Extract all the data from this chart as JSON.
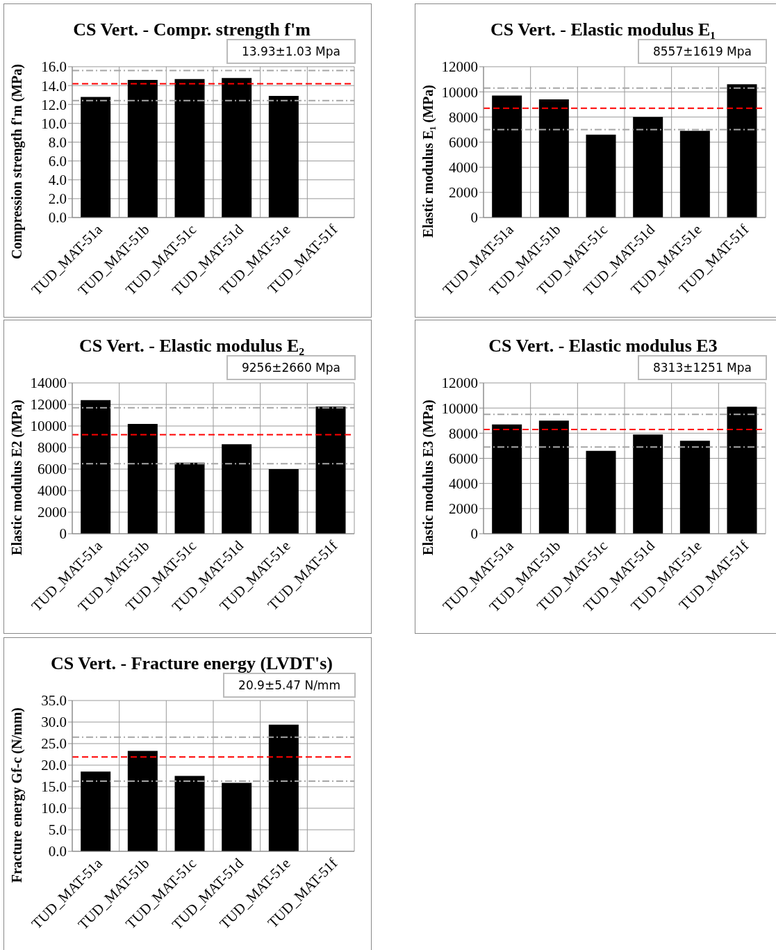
{
  "chart_data": [
    {
      "type": "bar",
      "title": "CS Vert. - Compr. strength f'm",
      "ylabel": "Compression strength f'm (MPa)",
      "categories": [
        "TUD_MAT-51a",
        "TUD_MAT-51b",
        "TUD_MAT-51c",
        "TUD_MAT-51d",
        "TUD_MAT-51e",
        "TUD_MAT-51f"
      ],
      "values": [
        12.8,
        14.6,
        14.7,
        14.8,
        12.9,
        null
      ],
      "color": "#000000",
      "ylim": [
        0,
        16
      ],
      "yticks": [
        {
          "value": 0,
          "label": "0.0"
        },
        {
          "value": 2,
          "label": "2.0"
        },
        {
          "value": 4,
          "label": "4.0"
        },
        {
          "value": 6,
          "label": "6.0"
        },
        {
          "value": 8,
          "label": "8.0"
        },
        {
          "value": 10,
          "label": "10.0"
        },
        {
          "value": 12,
          "label": "12.0"
        },
        {
          "value": 14,
          "label": "14.0"
        },
        {
          "value": 16,
          "label": "16.0"
        }
      ],
      "grid": true,
      "annotations": [
        "13.93±1.03 Mpa"
      ],
      "ref_lines": [
        {
          "axis": "y",
          "value": 14.2,
          "color": "#ff0000",
          "line_style": "dashed"
        },
        {
          "axis": "y",
          "value": 15.6,
          "color": "#a6a6a6",
          "line_style": "dashdot"
        },
        {
          "axis": "y",
          "value": 12.4,
          "color": "#a6a6a6",
          "line_style": "dashdot"
        }
      ]
    },
    {
      "type": "bar",
      "title": "CS Vert. - Elastic modulus E₁",
      "ylabel": "Elastic modulus E₁ (MPa)",
      "categories": [
        "TUD_MAT-51a",
        "TUD_MAT-51b",
        "TUD_MAT-51c",
        "TUD_MAT-51d",
        "TUD_MAT-51e",
        "TUD_MAT-51f"
      ],
      "values": [
        9700,
        9400,
        6600,
        8000,
        6900,
        10600
      ],
      "color": "#000000",
      "ylim": [
        0,
        12000
      ],
      "yticks": [
        0,
        2000,
        4000,
        6000,
        8000,
        10000,
        12000
      ],
      "grid": true,
      "annotations": [
        "8557±1619 Mpa"
      ],
      "ref_lines": [
        {
          "axis": "y",
          "value": 8700,
          "color": "#ff0000",
          "line_style": "dashed"
        },
        {
          "axis": "y",
          "value": 10300,
          "color": "#a6a6a6",
          "line_style": "dashdot"
        },
        {
          "axis": "y",
          "value": 7000,
          "color": "#a6a6a6",
          "line_style": "dashdot"
        }
      ]
    },
    {
      "type": "bar",
      "title": "CS Vert. - Elastic modulus E₂",
      "ylabel": "Elastic modulus E2 (MPa)",
      "categories": [
        "TUD_MAT-51a",
        "TUD_MAT-51b",
        "TUD_MAT-51c",
        "TUD_MAT-51d",
        "TUD_MAT-51e",
        "TUD_MAT-51f"
      ],
      "values": [
        12400,
        10200,
        6600,
        8300,
        6000,
        11800
      ],
      "color": "#000000",
      "ylim": [
        0,
        14000
      ],
      "yticks": [
        0,
        2000,
        4000,
        6000,
        8000,
        10000,
        12000,
        14000
      ],
      "grid": true,
      "annotations": [
        "9256±2660 Mpa"
      ],
      "ref_lines": [
        {
          "axis": "y",
          "value": 9200,
          "color": "#ff0000",
          "line_style": "dashed"
        },
        {
          "axis": "y",
          "value": 11700,
          "color": "#a6a6a6",
          "line_style": "dashdot"
        },
        {
          "axis": "y",
          "value": 6500,
          "color": "#a6a6a6",
          "line_style": "dashdot"
        }
      ]
    },
    {
      "type": "bar",
      "title": "CS Vert. - Elastic modulus E3",
      "ylabel": "Elastic modulus E3 (MPa)",
      "categories": [
        "TUD_MAT-51a",
        "TUD_MAT-51b",
        "TUD_MAT-51c",
        "TUD_MAT-51d",
        "TUD_MAT-51e",
        "TUD_MAT-51f"
      ],
      "values": [
        8700,
        9000,
        6600,
        7900,
        7400,
        10100
      ],
      "color": "#000000",
      "ylim": [
        0,
        12000
      ],
      "yticks": [
        0,
        2000,
        4000,
        6000,
        8000,
        10000,
        12000
      ],
      "grid": true,
      "annotations": [
        "8313±1251 Mpa"
      ],
      "ref_lines": [
        {
          "axis": "y",
          "value": 8300,
          "color": "#ff0000",
          "line_style": "dashed"
        },
        {
          "axis": "y",
          "value": 9500,
          "color": "#a6a6a6",
          "line_style": "dashdot"
        },
        {
          "axis": "y",
          "value": 6900,
          "color": "#a6a6a6",
          "line_style": "dashdot"
        }
      ]
    },
    {
      "type": "bar",
      "title": "CS Vert. - Fracture energy (LVDT's)",
      "ylabel": "Fracture energy Gf-c (N/mm)",
      "categories": [
        "TUD_MAT-51a",
        "TUD_MAT-51b",
        "TUD_MAT-51c",
        "TUD_MAT-51d",
        "TUD_MAT-51e",
        "TUD_MAT-51f"
      ],
      "values": [
        18.5,
        23.3,
        17.5,
        15.9,
        29.4,
        null
      ],
      "color": "#000000",
      "ylim": [
        0,
        35
      ],
      "yticks": [
        {
          "value": 0,
          "label": "0.0"
        },
        {
          "value": 5,
          "label": "5.0"
        },
        {
          "value": 10,
          "label": "10.0"
        },
        {
          "value": 15,
          "label": "15.0"
        },
        {
          "value": 20,
          "label": "20.0"
        },
        {
          "value": 25,
          "label": "25.0"
        },
        {
          "value": 30,
          "label": "30.0"
        },
        {
          "value": 35,
          "label": "35.0"
        }
      ],
      "grid": true,
      "annotations": [
        "20.9±5.47 N/mm"
      ],
      "ref_lines": [
        {
          "axis": "y",
          "value": 21.9,
          "color": "#ff0000",
          "line_style": "dashed"
        },
        {
          "axis": "y",
          "value": 26.5,
          "color": "#a6a6a6",
          "line_style": "dashdot"
        },
        {
          "axis": "y",
          "value": 16.3,
          "color": "#a6a6a6",
          "line_style": "dashdot"
        }
      ]
    }
  ]
}
